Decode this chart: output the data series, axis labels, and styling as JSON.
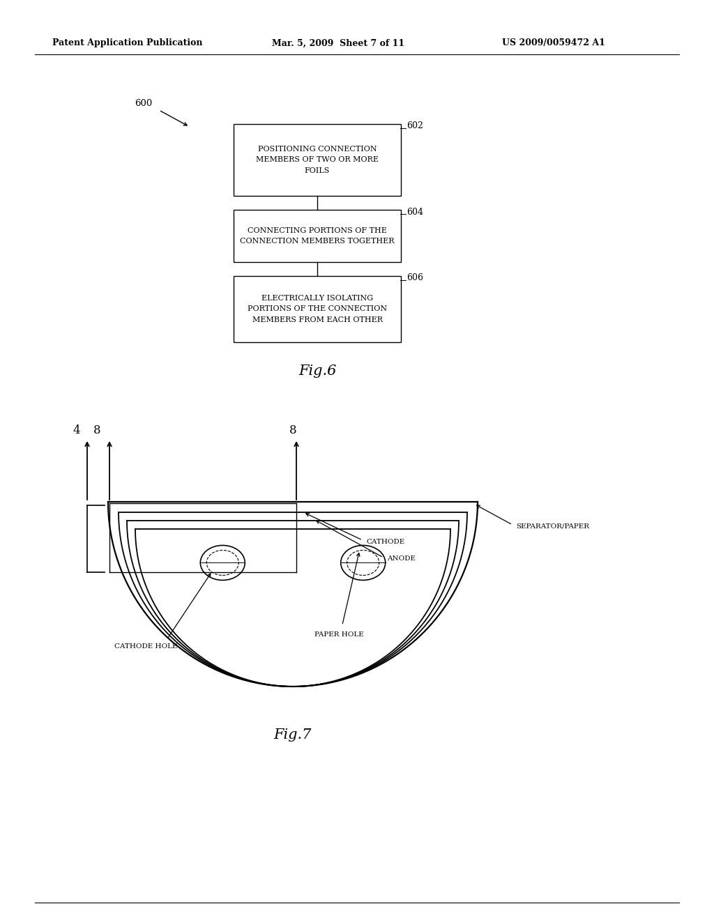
{
  "bg_color": "#ffffff",
  "header_left": "Patent Application Publication",
  "header_mid": "Mar. 5, 2009  Sheet 7 of 11",
  "header_right": "US 2009/0059472 A1",
  "fig6_label": "600",
  "box1_label": "602",
  "box1_text": "POSITIONING CONNECTION\nMEMBERS OF TWO OR MORE\nFOILS",
  "box2_label": "604",
  "box2_text": "CONNECTING PORTIONS OF THE\nCONNECTION MEMBERS TOGETHER",
  "box3_label": "606",
  "box3_text": "ELECTRICALLY ISOLATING\nPORTIONS OF THE CONNECTION\nMEMBERS FROM EACH OTHER",
  "fig6_caption": "Fig.6",
  "fig7_caption": "Fig.7",
  "label_cathode": "CATHODE",
  "label_anode": "ANODE",
  "label_separator": "SEPARATOR/PAPER",
  "label_cathode_hole": "CATHODE HOLE",
  "label_paper_hole": "PAPER HOLE"
}
